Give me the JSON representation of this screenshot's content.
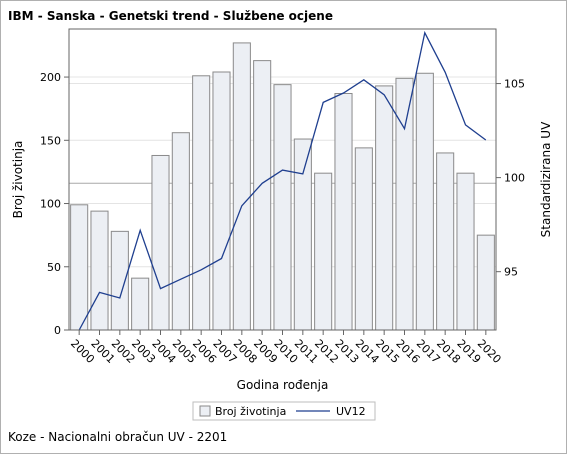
{
  "chart_title": "IBM - Sanska - Genetski trend - Službene ocjene",
  "footnote": "Koze - Nacionalni obračun UV - 2201",
  "colors": {
    "bar_fill": "#eceff4",
    "bar_stroke": "#8a8a8a",
    "line": "#1f3f8f",
    "axis": "#666666",
    "grid": "#e4e4e4",
    "refline": "#a8a8a8"
  },
  "chart_data": {
    "type": "bar",
    "title": "IBM - Sanska - Genetski trend - Službene ocjene",
    "xlabel": "Godina rođenja",
    "ylabel": "Broj životinja",
    "y2label": "Standardizirana UV",
    "categories": [
      "2000",
      "2001",
      "2002",
      "2003",
      "2004",
      "2005",
      "2006",
      "2007",
      "2008",
      "2009",
      "2010",
      "2011",
      "2012",
      "2013",
      "2014",
      "2015",
      "2016",
      "2017",
      "2018",
      "2019",
      "2020"
    ],
    "ylim": [
      0,
      238
    ],
    "y2lim": [
      91.9,
      107.9
    ],
    "yticks": [
      0,
      50,
      100,
      150,
      200
    ],
    "y2ticks": [
      95,
      100,
      105
    ],
    "grid": true,
    "reference_lines": {
      "y": [
        116
      ],
      "y2": [
        105
      ]
    },
    "legend_position": "bottom",
    "series": [
      {
        "name": "Broj životinja",
        "type": "bar",
        "axis": "left",
        "values": [
          99,
          94,
          78,
          41,
          138,
          156,
          201,
          204,
          227,
          213,
          194,
          151,
          124,
          187,
          144,
          193,
          199,
          203,
          140,
          124,
          75
        ]
      },
      {
        "name": "UV12",
        "type": "line",
        "axis": "right",
        "values": [
          91.9,
          93.9,
          93.6,
          97.2,
          94.1,
          94.6,
          95.1,
          95.7,
          98.5,
          99.7,
          100.4,
          100.2,
          104.0,
          104.5,
          105.2,
          104.4,
          102.6,
          107.7,
          105.6,
          102.8,
          102.0
        ]
      }
    ]
  }
}
